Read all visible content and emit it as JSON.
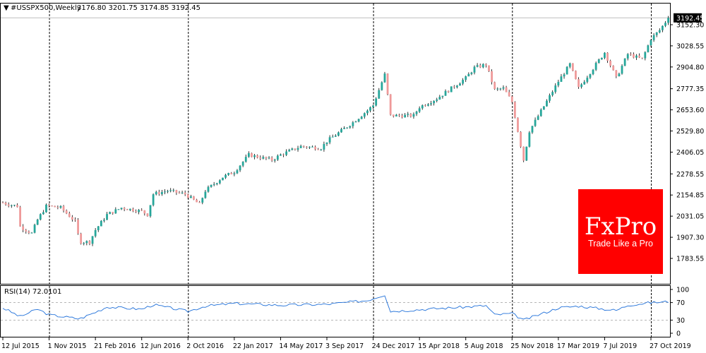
{
  "header": {
    "symbol_text": "#USSPX500,Weekly",
    "ohlc_text": "3176.80 3201.75 3174.85 3192.45"
  },
  "price_tag": "3192.45",
  "rsi_label": "RSI(14) 72.0101",
  "logo": {
    "brand": "FxPro",
    "tagline": "Trade Like a Pro"
  },
  "colors": {
    "bull": "#26a69a",
    "bear": "#ef9a9a",
    "rsi_line": "#1e6fd9",
    "logo_bg": "#ff0000",
    "price_tag_bg": "#000000"
  },
  "chart_data": [
    {
      "type": "candlestick",
      "title": "#USSPX500,Weekly",
      "ylim": [
        1783.55,
        3200.0
      ],
      "yticks": [
        "3152.30",
        "3028.55",
        "2904.80",
        "2777.35",
        "2653.60",
        "2529.80",
        "2406.05",
        "2278.55",
        "2154.85",
        "2031.05",
        "1907.30",
        "1783.55"
      ],
      "xticks": [
        "12 Jul 2015",
        "1 Nov 2015",
        "21 Feb 2016",
        "12 Jun 2016",
        "2 Oct 2016",
        "22 Jan 2017",
        "14 May 2017",
        "3 Sep 2017",
        "24 Dec 2017",
        "15 Apr 2018",
        "5 Aug 2018",
        "25 Nov 2018",
        "17 Mar 2019",
        "7 Jul 2019",
        "27 Oct 2019"
      ],
      "period_separators": [
        "1 Nov 2015",
        "2 Oct 2016",
        "24 Dec 2017",
        "25 Nov 2018",
        "27 Oct 2019"
      ],
      "last_price": 3192.45,
      "close_path": [
        [
          "12 Jul 2015",
          2110
        ],
        [
          "26 Jul 2015",
          2100
        ],
        [
          "16 Aug 2015",
          2090
        ],
        [
          "23 Aug 2015",
          1970
        ],
        [
          "20 Sep 2015",
          1930
        ],
        [
          "4 Oct 2015",
          2010
        ],
        [
          "25 Oct 2015",
          2090
        ],
        [
          "1 Nov 2015",
          2090
        ],
        [
          "29 Nov 2015",
          2080
        ],
        [
          "3 Jan 2016",
          2000
        ],
        [
          "14 Jan 2016",
          1880
        ],
        [
          "7 Feb 2016",
          1880
        ],
        [
          "21 Feb 2016",
          1950
        ],
        [
          "20 Mar 2016",
          2040
        ],
        [
          "24 Apr 2016",
          2080
        ],
        [
          "12 Jun 2016",
          2060
        ],
        [
          "26 Jun 2016",
          2040
        ],
        [
          "10 Jul 2016",
          2160
        ],
        [
          "14 Aug 2016",
          2180
        ],
        [
          "25 Sep 2016",
          2160
        ],
        [
          "30 Oct 2016",
          2100
        ],
        [
          "13 Nov 2016",
          2180
        ],
        [
          "25 Dec 2016",
          2260
        ],
        [
          "22 Jan 2017",
          2290
        ],
        [
          "26 Feb 2017",
          2390
        ],
        [
          "23 Apr 2017",
          2360
        ],
        [
          "14 May 2017",
          2390
        ],
        [
          "2 Jul 2017",
          2440
        ],
        [
          "20 Aug 2017",
          2430
        ],
        [
          "3 Sep 2017",
          2470
        ],
        [
          "5 Nov 2017",
          2580
        ],
        [
          "10 Dec 2017",
          2650
        ],
        [
          "24 Dec 2017",
          2680
        ],
        [
          "21 Jan 2018",
          2860
        ],
        [
          "4 Feb 2018",
          2620
        ],
        [
          "1 Apr 2018",
          2620
        ],
        [
          "15 Apr 2018",
          2670
        ],
        [
          "27 May 2018",
          2720
        ],
        [
          "5 Aug 2018",
          2840
        ],
        [
          "26 Aug 2018",
          2900
        ],
        [
          "23 Sep 2018",
          2920
        ],
        [
          "14 Oct 2018",
          2770
        ],
        [
          "4 Nov 2018",
          2780
        ],
        [
          "25 Nov 2018",
          2700
        ],
        [
          "23 Dec 2018",
          2360
        ],
        [
          "6 Jan 2019",
          2530
        ],
        [
          "17 Mar 2019",
          2820
        ],
        [
          "14 Apr 2019",
          2920
        ],
        [
          "5 May 2019",
          2780
        ],
        [
          "7 Jul 2019",
          2990
        ],
        [
          "4 Aug 2019",
          2840
        ],
        [
          "1 Sep 2019",
          2980
        ],
        [
          "6 Oct 2019",
          2950
        ],
        [
          "27 Oct 2019",
          3070
        ],
        [
          "17 Nov 2019",
          3120
        ],
        [
          "8 Dec 2019",
          3192.45
        ]
      ]
    },
    {
      "type": "line",
      "title": "RSI(14) 72.0101",
      "ylim": [
        0,
        100
      ],
      "yticks": [
        "100",
        "70",
        "30",
        "0"
      ],
      "levels": [
        70,
        30
      ],
      "last_value": 72.0101,
      "path": [
        [
          "12 Jul 2015",
          58
        ],
        [
          "23 Aug 2015",
          38
        ],
        [
          "4 Oct 2015",
          55
        ],
        [
          "1 Nov 2015",
          42
        ],
        [
          "14 Jan 2016",
          33
        ],
        [
          "21 Feb 2016",
          48
        ],
        [
          "20 Mar 2016",
          60
        ],
        [
          "12 Jun 2016",
          55
        ],
        [
          "10 Jul 2016",
          65
        ],
        [
          "2 Oct 2016",
          50
        ],
        [
          "13 Nov 2016",
          62
        ],
        [
          "22 Jan 2017",
          68
        ],
        [
          "14 May 2017",
          64
        ],
        [
          "3 Sep 2017",
          66
        ],
        [
          "10 Dec 2017",
          75
        ],
        [
          "21 Jan 2018",
          88
        ],
        [
          "4 Feb 2018",
          50
        ],
        [
          "15 Apr 2018",
          54
        ],
        [
          "5 Aug 2018",
          60
        ],
        [
          "23 Sep 2018",
          63
        ],
        [
          "14 Oct 2018",
          42
        ],
        [
          "25 Nov 2018",
          45
        ],
        [
          "23 Dec 2018",
          30
        ],
        [
          "17 Mar 2019",
          58
        ],
        [
          "5 May 2019",
          62
        ],
        [
          "4 Aug 2019",
          52
        ],
        [
          "1 Sep 2019",
          64
        ],
        [
          "27 Oct 2019",
          70
        ],
        [
          "8 Dec 2019",
          72.0101
        ]
      ]
    }
  ]
}
